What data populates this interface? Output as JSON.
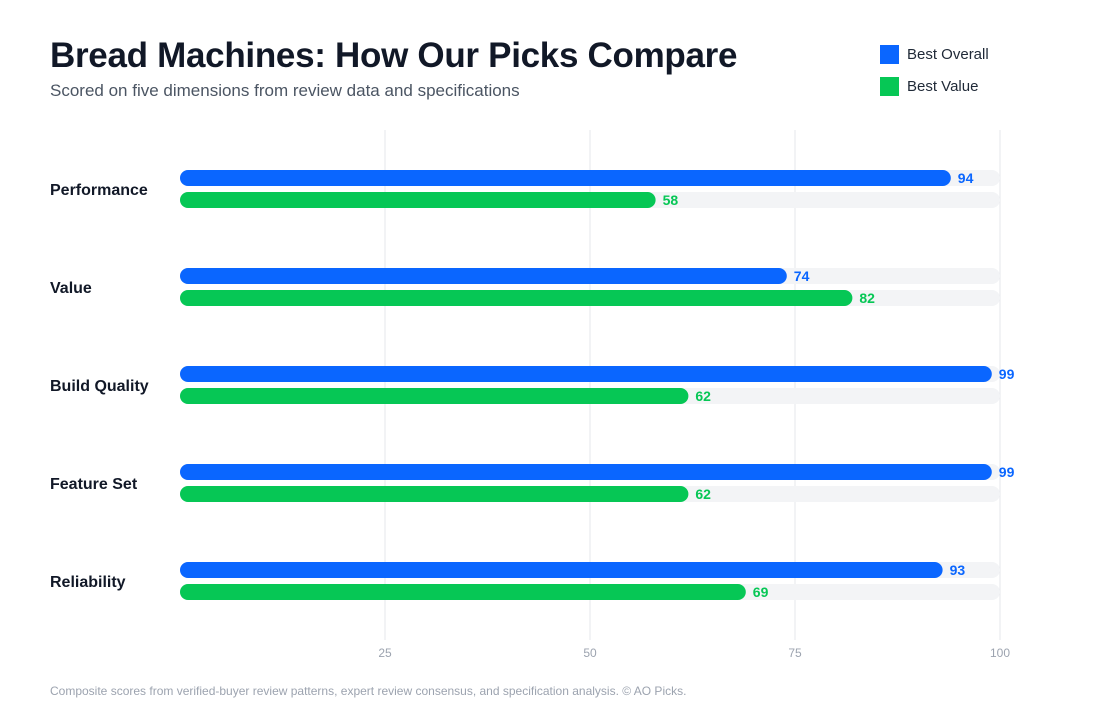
{
  "header": {
    "title": "Bread Machines: How Our Picks Compare",
    "subtitle": "Scored on five dimensions from review data and specifications"
  },
  "legend": [
    {
      "label": "Best Overall",
      "color": "#0a66ff"
    },
    {
      "label": "Best Value",
      "color": "#06c755"
    }
  ],
  "chart_data": {
    "type": "bar",
    "orientation": "horizontal",
    "title": "Bread Machines: How Our Picks Compare",
    "subtitle": "Scored on five dimensions from review data and specifications",
    "categories": [
      "Performance",
      "Value",
      "Build Quality",
      "Feature Set",
      "Reliability"
    ],
    "series": [
      {
        "name": "Best Overall",
        "color": "#0a66ff",
        "values": [
          94,
          74,
          99,
          99,
          93
        ]
      },
      {
        "name": "Best Value",
        "color": "#06c755",
        "values": [
          58,
          82,
          62,
          62,
          69
        ]
      }
    ],
    "xlim": [
      0,
      100
    ],
    "xticks": [
      25,
      50,
      75,
      100
    ],
    "grid": true,
    "legend_position": "top-right",
    "track_color": "#f3f4f6",
    "grid_color": "#e5e7eb"
  },
  "footer": {
    "note": "Composite scores from verified-buyer review patterns, expert review consensus, and specification analysis. © AO Picks."
  }
}
